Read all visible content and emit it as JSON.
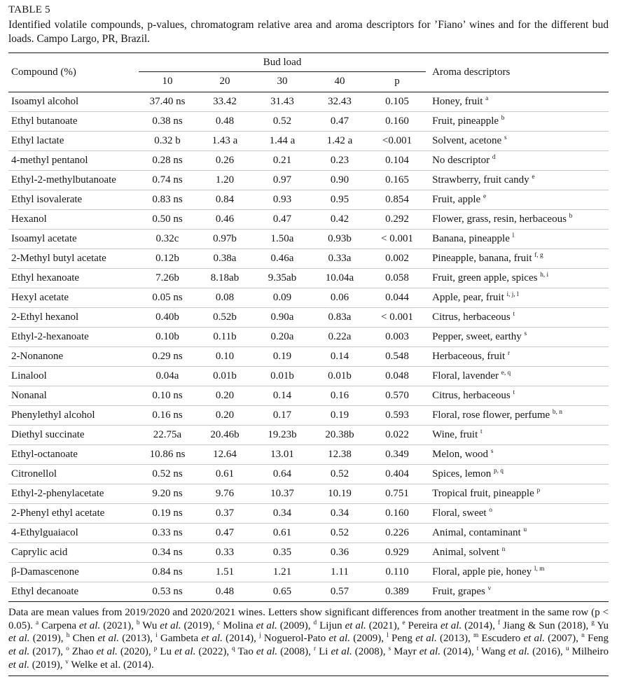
{
  "page": {
    "table_label": "TABLE 5",
    "caption": "Identified volatile compounds, p-values, chromatogram relative area and aroma descriptors for ’Fiano’ wines and for the different bud loads. Campo Largo, PR, Brazil."
  },
  "table": {
    "header": {
      "compound": "Compound (%)",
      "bud_load": "Bud load",
      "cols": [
        "10",
        "20",
        "30",
        "40",
        "p"
      ],
      "aroma": "Aroma descriptors"
    },
    "rows": [
      {
        "compound": "Isoamyl alcohol",
        "v10": "37.40 ns",
        "v20": "33.42",
        "v30": "31.43",
        "v40": "32.43",
        "p": "0.105",
        "aroma": "Honey, fruit ^{a}"
      },
      {
        "compound": "Ethyl butanoate",
        "v10": "0.38 ns",
        "v20": "0.48",
        "v30": "0.52",
        "v40": "0.47",
        "p": "0.160",
        "aroma": "Fruit, pineapple ^{b}"
      },
      {
        "compound": "Ethyl lactate",
        "v10": "0.32 b",
        "v20": "1.43 a",
        "v30": "1.44 a",
        "v40": "1.42 a",
        "p": "<0.001",
        "aroma": "Solvent, acetone ^{s}"
      },
      {
        "compound": "4-methyl pentanol",
        "v10": "0.28 ns",
        "v20": "0.26",
        "v30": "0.21",
        "v40": "0.23",
        "p": "0.104",
        "aroma": "No descriptor ^{d}"
      },
      {
        "compound": "Ethyl-2-methylbutanoate",
        "v10": "0.74 ns",
        "v20": "1.20",
        "v30": "0.97",
        "v40": "0.90",
        "p": "0.165",
        "aroma": "Strawberry, fruit candy ^{e}"
      },
      {
        "compound": "Ethyl isovalerate",
        "v10": "0.83 ns",
        "v20": "0.84",
        "v30": "0.93",
        "v40": "0.95",
        "p": "0.854",
        "aroma": "Fruit, apple ^{e}"
      },
      {
        "compound": "Hexanol",
        "v10": "0.50 ns",
        "v20": "0.46",
        "v30": "0.47",
        "v40": "0.42",
        "p": "0.292",
        "aroma": "Flower, grass, resin, herbaceous ^{b}"
      },
      {
        "compound": "Isoamyl acetate",
        "v10": "0.32c",
        "v20": "0.97b",
        "v30": "1.50a",
        "v40": "0.93b",
        "p": "< 0.001",
        "aroma": "Banana, pineapple ^{l}"
      },
      {
        "compound": "2-Methyl butyl acetate",
        "v10": "0.12b",
        "v20": "0.38a",
        "v30": "0.46a",
        "v40": "0.33a",
        "p": "0.002",
        "aroma": "Pineapple, banana, fruit ^{f, g}"
      },
      {
        "compound": "Ethyl hexanoate",
        "v10": "7.26b",
        "v20": "8.18ab",
        "v30": "9.35ab",
        "v40": "10.04a",
        "p": "0.058",
        "aroma": "Fruit, green apple, spices ^{h, i}"
      },
      {
        "compound": "Hexyl acetate",
        "v10": "0.05 ns",
        "v20": "0.08",
        "v30": "0.09",
        "v40": "0.06",
        "p": "0.044",
        "aroma": "Apple, pear, fruit ^{i, j, l}"
      },
      {
        "compound": "2-Ethyl hexanol",
        "v10": "0.40b",
        "v20": "0.52b",
        "v30": "0.90a",
        "v40": "0.83a",
        "p": "< 0.001",
        "aroma": "Citrus, herbaceous ^{t}"
      },
      {
        "compound": "Ethyl-2-hexanoate",
        "v10": "0.10b",
        "v20": "0.11b",
        "v30": "0.20a",
        "v40": "0.22a",
        "p": "0.003",
        "aroma": "Pepper, sweet, earthy ^{s}"
      },
      {
        "compound": "2-Nonanone",
        "v10": "0.29 ns",
        "v20": "0.10",
        "v30": "0.19",
        "v40": "0.14",
        "p": "0.548",
        "aroma": "Herbaceous, fruit ^{r}"
      },
      {
        "compound": "Linalool",
        "v10": "0.04a",
        "v20": "0.01b",
        "v30": "0.01b",
        "v40": "0.01b",
        "p": "0.048",
        "aroma": "Floral, lavender ^{e, q}"
      },
      {
        "compound": "Nonanal",
        "v10": "0.10 ns",
        "v20": "0.20",
        "v30": "0.14",
        "v40": "0.16",
        "p": "0.570",
        "aroma": "Citrus, herbaceous ^{t}"
      },
      {
        "compound": "Phenylethyl alcohol",
        "v10": "0.16 ns",
        "v20": "0.20",
        "v30": "0.17",
        "v40": "0.19",
        "p": "0.593",
        "aroma": "Floral, rose flower, perfume ^{b, n}"
      },
      {
        "compound": "Diethyl succinate",
        "v10": "22.75a",
        "v20": "20.46b",
        "v30": "19.23b",
        "v40": "20.38b",
        "p": "0.022",
        "aroma": "Wine, fruit ^{t}"
      },
      {
        "compound": "Ethyl-octanoate",
        "v10": "10.86 ns",
        "v20": "12.64",
        "v30": "13.01",
        "v40": "12.38",
        "p": "0.349",
        "aroma": "Melon, wood ^{s}"
      },
      {
        "compound": "Citronellol",
        "v10": "0.52 ns",
        "v20": "0.61",
        "v30": "0.64",
        "v40": "0.52",
        "p": "0.404",
        "aroma": "Spices, lemon ^{p, q}"
      },
      {
        "compound": "Ethyl-2-phenylacetate",
        "v10": "9.20 ns",
        "v20": "9.76",
        "v30": "10.37",
        "v40": "10.19",
        "p": "0.751",
        "aroma": "Tropical fruit, pineapple ^{p}"
      },
      {
        "compound": "2-Phenyl ethyl acetate",
        "v10": "0.19 ns",
        "v20": "0.37",
        "v30": "0.34",
        "v40": "0.34",
        "p": "0.160",
        "aroma": "Floral, sweet ^{o}"
      },
      {
        "compound": "4-Ethylguaiacol",
        "v10": "0.33 ns",
        "v20": "0.47",
        "v30": "0.61",
        "v40": "0.52",
        "p": "0.226",
        "aroma": "Animal, contaminant ^{u}"
      },
      {
        "compound": "Caprylic acid",
        "v10": "0.34 ns",
        "v20": "0.33",
        "v30": "0.35",
        "v40": "0.36",
        "p": "0.929",
        "aroma": "Animal, solvent ^{n}"
      },
      {
        "compound": "β-Damascenone",
        "v10": "0.84 ns",
        "v20": "1.51",
        "v30": "1.21",
        "v40": "1.11",
        "p": "0.110",
        "aroma": "Floral, apple pie, honey ^{l, m}"
      },
      {
        "compound": "Ethyl decanoate",
        "v10": "0.53 ns",
        "v20": "0.48",
        "v30": "0.65",
        "v40": "0.57",
        "p": "0.389",
        "aroma": "Fruit, grapes ^{v}"
      }
    ],
    "footnote": "Data are mean values from 2019/2020 and 2020/2021 wines. Letters show significant differences from another treatment in the same row (p < 0.05). ^{a} Carpena *et al.* (2021), ^{b} Wu *et al.* (2019), ^{c} Molina *et al.* (2009), ^{d} Lijun *et al.* (2021), ^{e} Pereira *et al.* (2014), ^{f} Jiang & Sun (2018), ^{g} Yu *et al.* (2019), ^{h} Chen *et al.* (2013), ^{i} Gambeta *et al.* (2014), ^{j} Noguerol-Pato *et al.* (2009), ^{l} Peng *et al.* (2013), ^{m} Escudero *et al.* (2007), ^{n} Feng *et al.* (2017), ^{o} Zhao *et al.* (2020), ^{p} Lu *et al.* (2022), ^{q} Tao *et al.* (2008), ^{r} Li *et al.* (2008), ^{s} Mayr *et al.* (2014), ^{t} Wang *et al.* (2016), ^{u} Milheiro *et al.* (2019), ^{v} Welke et al. (2014)."
  }
}
